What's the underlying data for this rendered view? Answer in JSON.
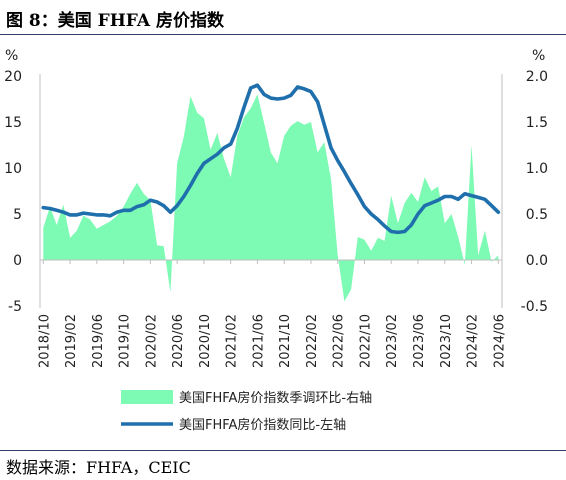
{
  "figure_title": "图 8：美国 FHFA 房价指数",
  "source": "数据来源：FHFA，CEIC",
  "colors": {
    "area": "#7dfab4",
    "line": "#1f6fad",
    "rule": "#2f3d68",
    "axis": "#bfbfbf"
  },
  "chart_data": {
    "type": "area",
    "left_axis": {
      "unit": "%",
      "min": -5,
      "max": 20,
      "ticks": [
        "-5",
        "0",
        "5",
        "10",
        "15",
        "20"
      ]
    },
    "right_axis": {
      "unit": "%",
      "min": -0.5,
      "max": 2.0,
      "ticks": [
        "-0.5",
        "0.0",
        "0.5",
        "1.0",
        "1.5",
        "2.0"
      ]
    },
    "x_tick_labels": [
      "2018/10",
      "2019/02",
      "2019/06",
      "2019/10",
      "2020/02",
      "2020/06",
      "2020/10",
      "2021/02",
      "2021/06",
      "2021/10",
      "2022/02",
      "2022/06",
      "2022/10",
      "2023/02",
      "2023/06",
      "2023/10",
      "2024/02",
      "2024/06"
    ],
    "x_tick_months": [
      0,
      4,
      8,
      12,
      16,
      20,
      24,
      28,
      32,
      36,
      40,
      44,
      48,
      52,
      56,
      60,
      64,
      68
    ],
    "grid": false,
    "legend_position": "bottom",
    "series": [
      {
        "name": "美国FHFA房价指数季调环比-右轴",
        "type": "area",
        "axis": "right",
        "values": [
          0.35,
          0.58,
          0.38,
          0.6,
          0.24,
          0.32,
          0.48,
          0.44,
          0.34,
          0.38,
          0.42,
          0.48,
          0.58,
          0.72,
          0.84,
          0.72,
          0.65,
          0.16,
          0.15,
          -0.35,
          1.05,
          1.34,
          1.78,
          1.6,
          1.54,
          1.2,
          1.38,
          1.1,
          0.9,
          1.35,
          1.55,
          1.65,
          1.8,
          1.49,
          1.17,
          1.05,
          1.35,
          1.46,
          1.51,
          1.47,
          1.5,
          1.17,
          1.28,
          0.88,
          0.05,
          -0.45,
          -0.32,
          0.25,
          0.22,
          0.1,
          0.24,
          0.21,
          0.7,
          0.4,
          0.62,
          0.73,
          0.63,
          0.9,
          0.75,
          0.8,
          0.4,
          0.5,
          0.25,
          -0.05,
          1.25,
          0.05,
          0.32,
          -0.02,
          0.05
        ]
      },
      {
        "name": "美国FHFA房价指数同比-左轴",
        "type": "line",
        "axis": "left",
        "values": [
          5.7,
          5.6,
          5.4,
          5.2,
          4.9,
          4.9,
          5.1,
          5.0,
          4.9,
          4.9,
          4.8,
          5.2,
          5.4,
          5.4,
          5.8,
          6.0,
          6.5,
          6.3,
          5.9,
          5.2,
          5.9,
          6.9,
          8.1,
          9.4,
          10.5,
          11.0,
          11.5,
          12.2,
          12.6,
          14.3,
          16.6,
          18.7,
          19.0,
          18.0,
          17.6,
          17.5,
          17.6,
          17.9,
          18.8,
          18.6,
          18.3,
          17.2,
          14.7,
          12.2,
          10.8,
          9.6,
          8.3,
          7.1,
          5.8,
          5.0,
          4.4,
          3.7,
          3.1,
          3.0,
          3.1,
          3.8,
          5.0,
          5.9,
          6.2,
          6.5,
          6.9,
          6.9,
          6.6,
          7.2,
          7.0,
          6.8,
          6.6,
          5.9,
          5.2
        ]
      }
    ]
  }
}
